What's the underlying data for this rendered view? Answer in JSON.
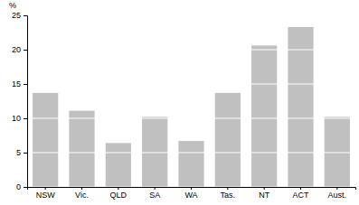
{
  "chart_data": {
    "type": "bar",
    "y_label": "%",
    "categories": [
      "NSW",
      "Vic.",
      "QLD",
      "SA",
      "WA",
      "Tas.",
      "NT",
      "ACT",
      "Aust."
    ],
    "values": [
      13.7,
      11.1,
      6.4,
      10.2,
      6.7,
      13.7,
      20.6,
      23.3,
      10.2
    ],
    "color": "#c0c0c0",
    "ylim": [
      0,
      25
    ],
    "yticks": [
      0,
      5,
      10,
      15,
      20,
      25
    ],
    "grid": true
  }
}
